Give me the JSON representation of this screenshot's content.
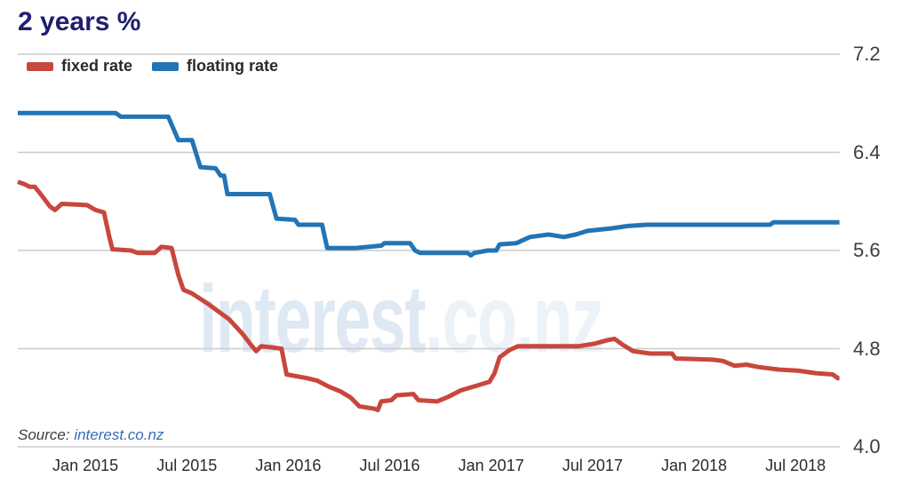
{
  "title": "2 years %",
  "legend": [
    {
      "label": "fixed rate",
      "color": "#c8473c"
    },
    {
      "label": "floating rate",
      "color": "#2274b5"
    }
  ],
  "source": {
    "label": "Source: ",
    "link_text": "interest.co.nz"
  },
  "watermark": {
    "part1": "interest",
    "part2": ".co.nz",
    "color1": "#dfe9f4",
    "color2": "#edf1f8"
  },
  "colors": {
    "grid": "#cbcbcb",
    "title": "#1f1f6e",
    "fixed": "#c8473c",
    "floating": "#2274b5"
  },
  "chart_data": {
    "type": "line",
    "title": "2 years %",
    "xlabel": "",
    "ylabel": "%",
    "ylim": [
      4.0,
      7.2
    ],
    "x_months_range": [
      0,
      48.6
    ],
    "x_epoch_month0": "Sep 2014",
    "grid": "horizontal-only",
    "legend_position": "top-left",
    "y_ticks": [
      {
        "value": 7.2,
        "label": "7.2"
      },
      {
        "value": 6.4,
        "label": "6.4"
      },
      {
        "value": 5.6,
        "label": "5.6"
      },
      {
        "value": 4.8,
        "label": "4.8"
      },
      {
        "value": 4.0,
        "label": "4.0"
      }
    ],
    "x_ticks": [
      {
        "m": 4,
        "label": "Jan 2015"
      },
      {
        "m": 10,
        "label": "Jul 2015"
      },
      {
        "m": 16,
        "label": "Jan 2016"
      },
      {
        "m": 22,
        "label": "Jul 2016"
      },
      {
        "m": 28,
        "label": "Jan 2017"
      },
      {
        "m": 34,
        "label": "Jul 2017"
      },
      {
        "m": 40,
        "label": "Jan 2018"
      },
      {
        "m": 46,
        "label": "Jul 2018"
      }
    ],
    "series": [
      {
        "name": "fixed rate",
        "color": "#c8473c",
        "points": [
          [
            0,
            6.16
          ],
          [
            0.4,
            6.14
          ],
          [
            0.7,
            6.12
          ],
          [
            1.0,
            6.12
          ],
          [
            1.3,
            6.07
          ],
          [
            1.9,
            5.96
          ],
          [
            2.2,
            5.93
          ],
          [
            2.6,
            5.98
          ],
          [
            4.1,
            5.97
          ],
          [
            4.6,
            5.93
          ],
          [
            5.1,
            5.91
          ],
          [
            5.4,
            5.72
          ],
          [
            5.6,
            5.61
          ],
          [
            6.7,
            5.6
          ],
          [
            7.1,
            5.58
          ],
          [
            8.1,
            5.58
          ],
          [
            8.5,
            5.63
          ],
          [
            9.1,
            5.62
          ],
          [
            9.5,
            5.4
          ],
          [
            9.8,
            5.28
          ],
          [
            10.3,
            5.25
          ],
          [
            11.2,
            5.17
          ],
          [
            12.5,
            5.04
          ],
          [
            13.3,
            4.92
          ],
          [
            13.8,
            4.83
          ],
          [
            14.1,
            4.78
          ],
          [
            14.4,
            4.82
          ],
          [
            15.6,
            4.8
          ],
          [
            15.9,
            4.59
          ],
          [
            17.1,
            4.56
          ],
          [
            17.7,
            4.54
          ],
          [
            18.4,
            4.49
          ],
          [
            19.1,
            4.45
          ],
          [
            19.7,
            4.4
          ],
          [
            20.2,
            4.33
          ],
          [
            21.1,
            4.31
          ],
          [
            21.3,
            4.3
          ],
          [
            21.5,
            4.37
          ],
          [
            22.1,
            4.38
          ],
          [
            22.4,
            4.42
          ],
          [
            23.4,
            4.43
          ],
          [
            23.7,
            4.38
          ],
          [
            24.8,
            4.37
          ],
          [
            25.5,
            4.41
          ],
          [
            26.2,
            4.46
          ],
          [
            27.2,
            4.5
          ],
          [
            27.9,
            4.53
          ],
          [
            28.2,
            4.6
          ],
          [
            28.5,
            4.73
          ],
          [
            29.1,
            4.79
          ],
          [
            29.6,
            4.82
          ],
          [
            33.2,
            4.82
          ],
          [
            34.1,
            4.84
          ],
          [
            34.9,
            4.87
          ],
          [
            35.3,
            4.88
          ],
          [
            35.8,
            4.83
          ],
          [
            36.4,
            4.78
          ],
          [
            37.4,
            4.76
          ],
          [
            38.7,
            4.76
          ],
          [
            38.9,
            4.72
          ],
          [
            41.1,
            4.71
          ],
          [
            41.7,
            4.7
          ],
          [
            42.4,
            4.66
          ],
          [
            43.1,
            4.67
          ],
          [
            43.8,
            4.65
          ],
          [
            45.0,
            4.63
          ],
          [
            46.2,
            4.62
          ],
          [
            47.2,
            4.6
          ],
          [
            48.2,
            4.59
          ],
          [
            48.5,
            4.56
          ],
          [
            48.6,
            4.56
          ]
        ]
      },
      {
        "name": "floating rate",
        "color": "#2274b5",
        "points": [
          [
            0,
            6.72
          ],
          [
            5.8,
            6.72
          ],
          [
            6.1,
            6.69
          ],
          [
            8.9,
            6.69
          ],
          [
            9.5,
            6.5
          ],
          [
            10.3,
            6.5
          ],
          [
            10.8,
            6.28
          ],
          [
            11.7,
            6.27
          ],
          [
            12.0,
            6.21
          ],
          [
            12.2,
            6.21
          ],
          [
            12.4,
            6.06
          ],
          [
            14.9,
            6.06
          ],
          [
            15.3,
            5.86
          ],
          [
            16.4,
            5.85
          ],
          [
            16.6,
            5.81
          ],
          [
            18.0,
            5.81
          ],
          [
            18.3,
            5.62
          ],
          [
            20.0,
            5.62
          ],
          [
            21.5,
            5.64
          ],
          [
            21.7,
            5.66
          ],
          [
            23.2,
            5.66
          ],
          [
            23.5,
            5.6
          ],
          [
            23.8,
            5.58
          ],
          [
            26.6,
            5.58
          ],
          [
            26.8,
            5.56
          ],
          [
            27.0,
            5.58
          ],
          [
            27.8,
            5.6
          ],
          [
            28.3,
            5.6
          ],
          [
            28.5,
            5.65
          ],
          [
            29.5,
            5.66
          ],
          [
            30.3,
            5.71
          ],
          [
            31.4,
            5.73
          ],
          [
            32.3,
            5.71
          ],
          [
            33.0,
            5.73
          ],
          [
            33.7,
            5.76
          ],
          [
            35.1,
            5.78
          ],
          [
            36.1,
            5.8
          ],
          [
            37.2,
            5.81
          ],
          [
            44.5,
            5.81
          ],
          [
            44.7,
            5.83
          ],
          [
            48.6,
            5.83
          ]
        ]
      }
    ]
  }
}
